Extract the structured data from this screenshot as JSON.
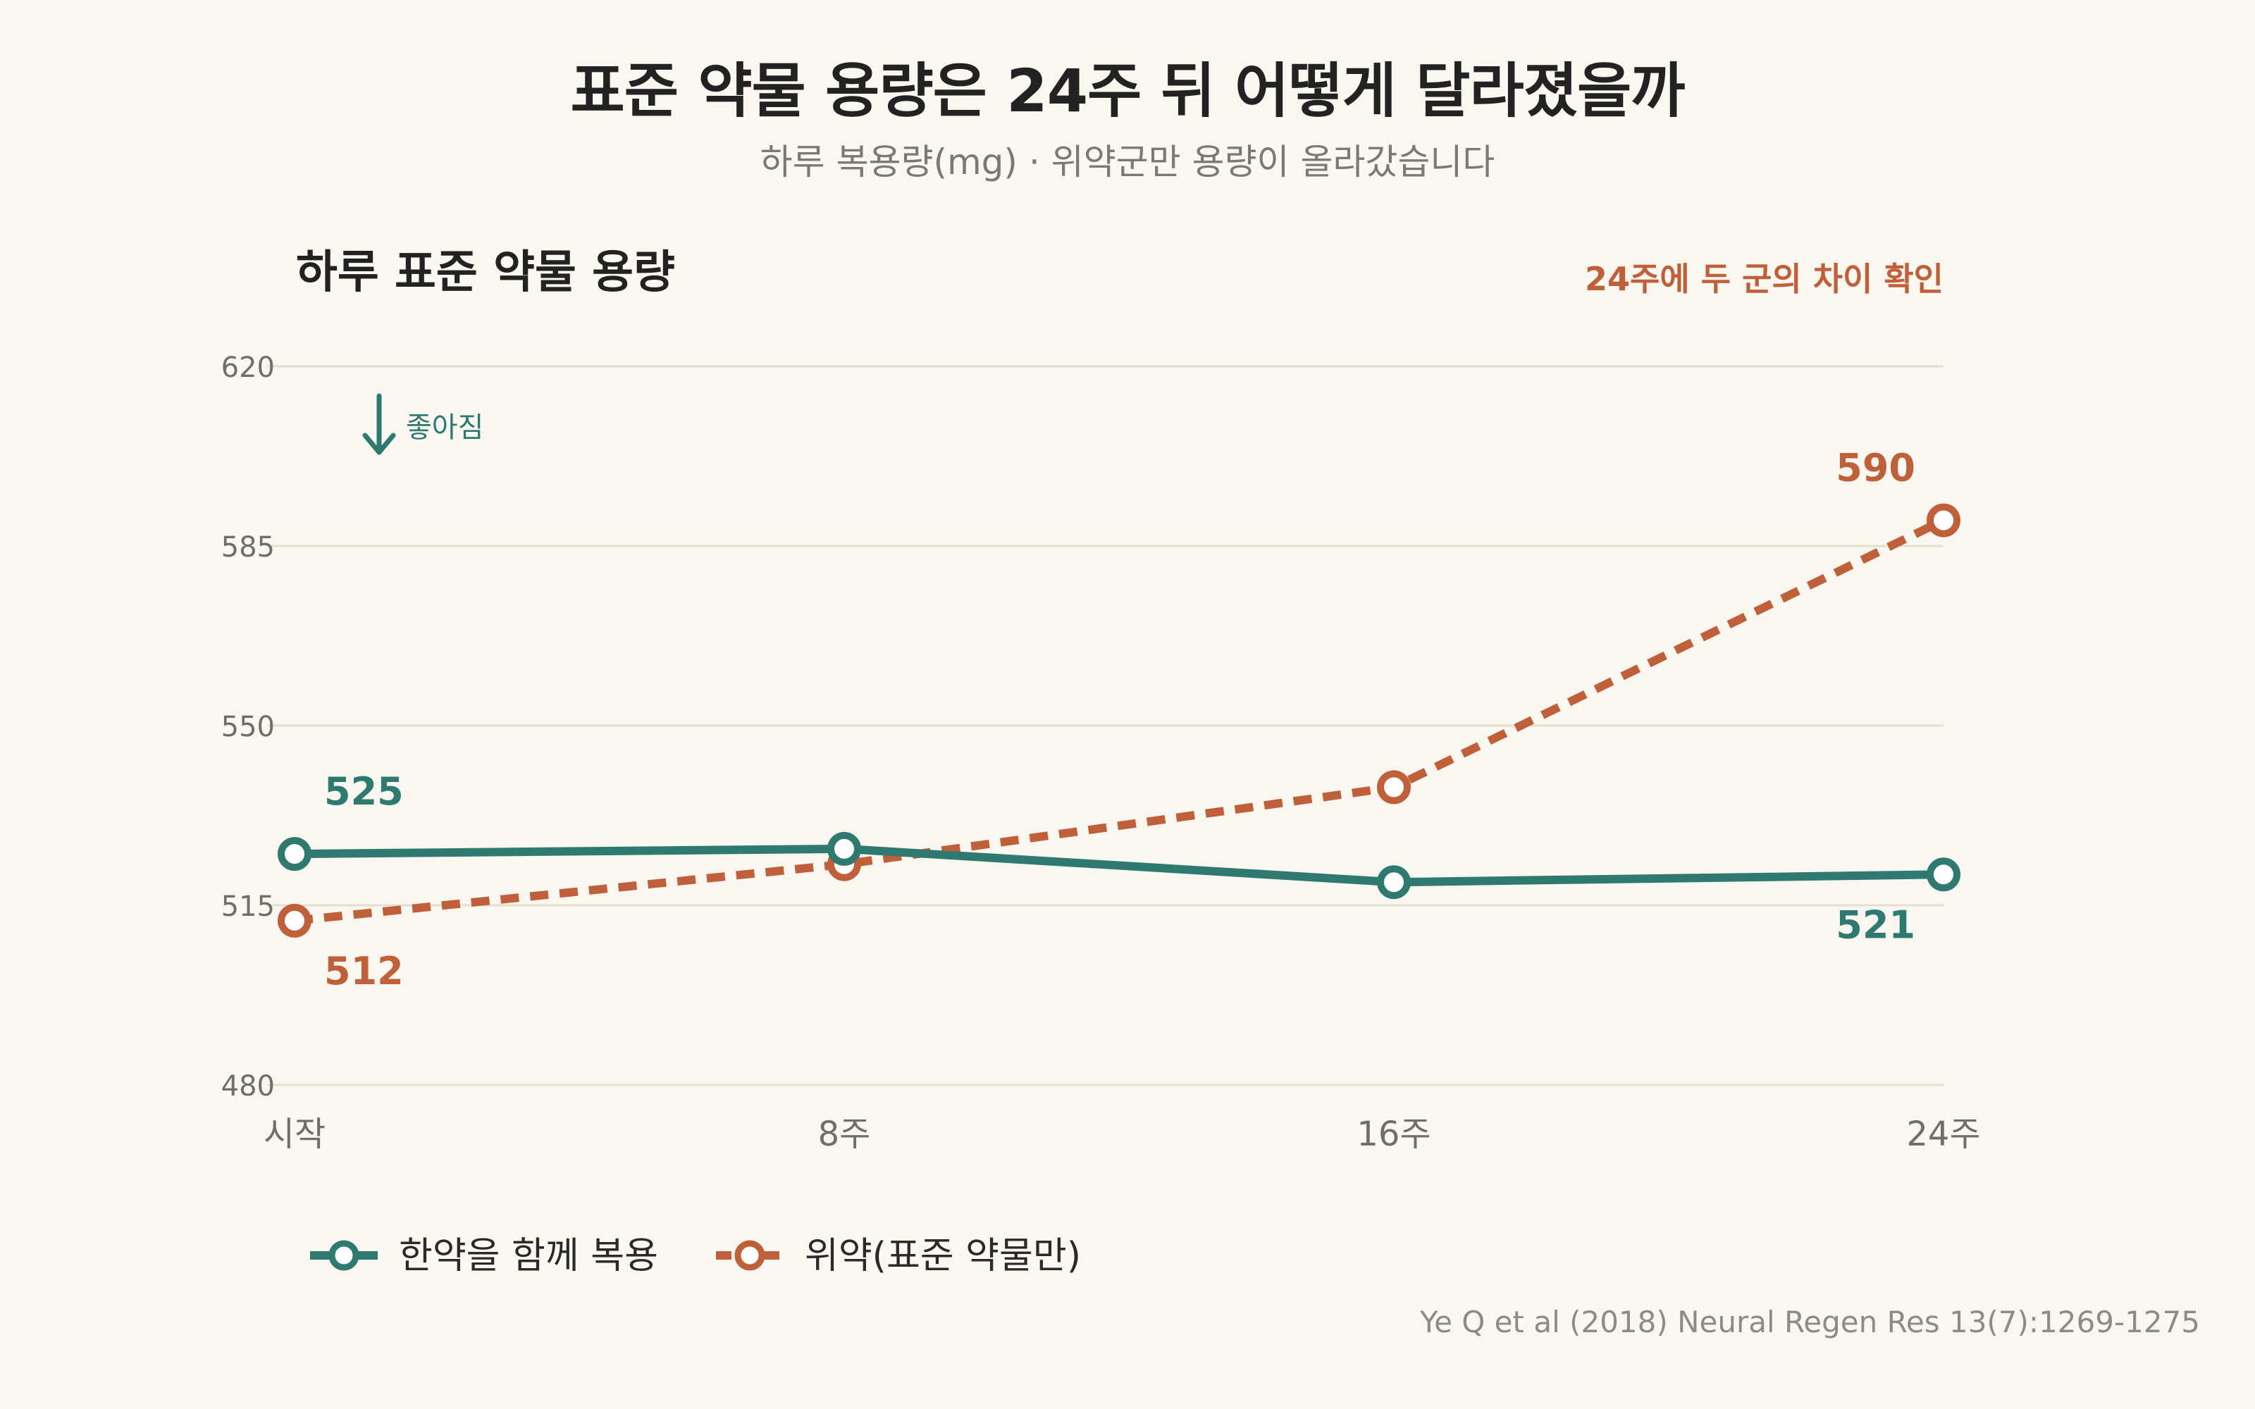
{
  "header": {
    "title": "표준 약물 용량은 24주 뒤 어떻게 달라졌을까",
    "subtitle": "하루 복용량(mg) · 위약군만 용량이 올라갔습니다"
  },
  "source": "Ye Q et al (2018) Neural Regen Res 13(7):1269-1275",
  "colors": {
    "background": "#f9f7ef",
    "herbal": "#2e7a70",
    "placebo": "#c0603a",
    "grid": "#e4e0d0",
    "axis_text": "#6f6f68"
  },
  "chart_data": {
    "type": "line",
    "panel_title": "하루 표준 약물 용량",
    "annotation": "24주에 두 군의 차이 확인",
    "direction_note": "좋아짐",
    "direction_icon": "arrow-down-icon",
    "categories": [
      "시작",
      "8주",
      "16주",
      "24주"
    ],
    "ylim": [
      480,
      620
    ],
    "yticks": [
      480,
      515,
      550,
      585,
      620
    ],
    "grid": true,
    "legend_position": "bottom-left",
    "series": [
      {
        "name": "한약을 함께 복용",
        "values": [
          525,
          526,
          519.5,
          521
        ],
        "labels": [
          "525",
          "",
          "",
          "521"
        ],
        "line_style": "solid",
        "color": "#2e7a70"
      },
      {
        "name": "위약(표준 약물만)",
        "values": [
          512,
          523,
          538,
          590
        ],
        "labels": [
          "512",
          "",
          "",
          "590"
        ],
        "line_style": "dashed",
        "color": "#c0603a"
      }
    ]
  }
}
